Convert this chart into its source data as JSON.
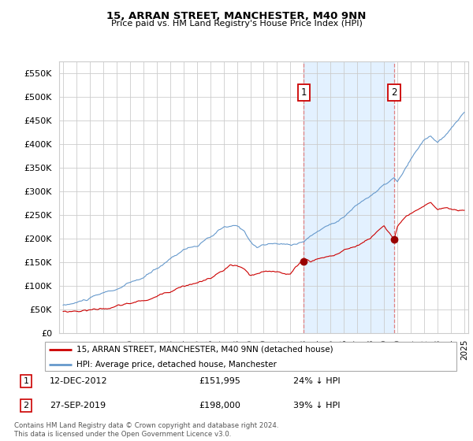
{
  "title": "15, ARRAN STREET, MANCHESTER, M40 9NN",
  "subtitle": "Price paid vs. HM Land Registry's House Price Index (HPI)",
  "ylim": [
    0,
    575000
  ],
  "yticks": [
    0,
    50000,
    100000,
    150000,
    200000,
    250000,
    300000,
    350000,
    400000,
    450000,
    500000,
    550000
  ],
  "hpi_color": "#6699cc",
  "price_color": "#cc0000",
  "shaded_color": "#ddeeff",
  "grid_color": "#cccccc",
  "marker1_x": 2013.0,
  "marker1_y": 151995,
  "marker1_label": "1",
  "marker1_date": "12-DEC-2012",
  "marker1_price": "£151,995",
  "marker1_hpi": "24% ↓ HPI",
  "marker2_x": 2019.75,
  "marker2_y": 198000,
  "marker2_label": "2",
  "marker2_date": "27-SEP-2019",
  "marker2_price": "£198,000",
  "marker2_hpi": "39% ↓ HPI",
  "legend_label1": "15, ARRAN STREET, MANCHESTER, M40 9NN (detached house)",
  "legend_label2": "HPI: Average price, detached house, Manchester",
  "footer": "Contains HM Land Registry data © Crown copyright and database right 2024.\nThis data is licensed under the Open Government Licence v3.0.",
  "xlim_left": 1994.7,
  "xlim_right": 2025.3
}
